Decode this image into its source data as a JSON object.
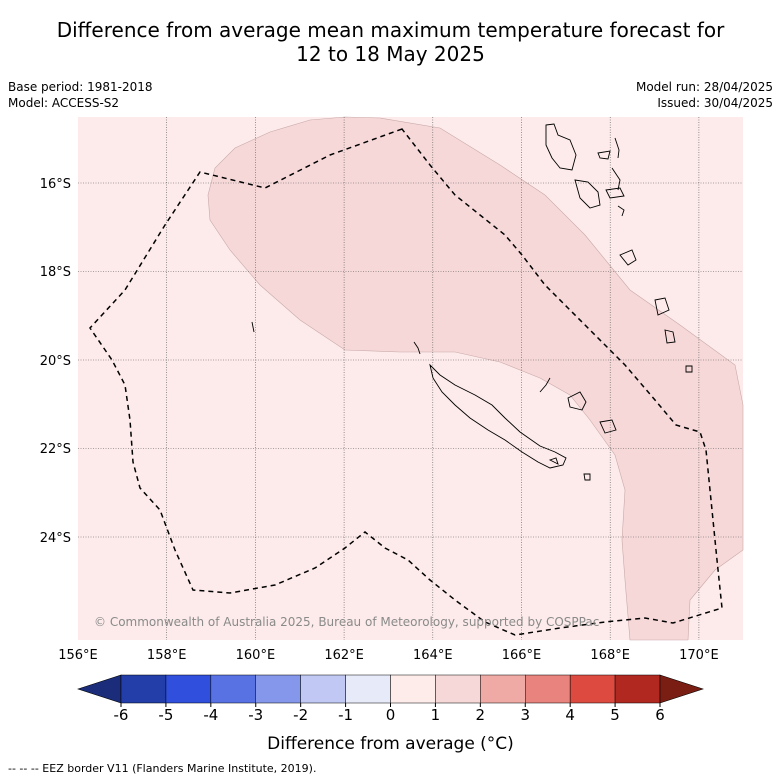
{
  "title_line1": "Difference from average mean maximum temperature forecast for",
  "title_line2": "12 to 18 May 2025",
  "base_period": "Base period: 1981-2018",
  "model": "Model: ACCESS-S2",
  "model_run": "Model run: 28/04/2025",
  "issued": "Issued: 30/04/2025",
  "copyright": "© Commonwealth of Australia 2025, Bureau of Meteorology, supported by COSPPac",
  "lat_labels": [
    "16°S",
    "18°S",
    "20°S",
    "22°S",
    "24°S"
  ],
  "lon_labels": [
    "156°E",
    "158°E",
    "160°E",
    "162°E",
    "164°E",
    "166°E",
    "168°E",
    "170°E"
  ],
  "colorbar": {
    "ticks": [
      "-6",
      "-5",
      "-4",
      "-3",
      "-2",
      "-1",
      "0",
      "1",
      "2",
      "3",
      "4",
      "5",
      "6"
    ],
    "colors": [
      "#233da9",
      "#2f4fdc",
      "#5872e4",
      "#8597ea",
      "#c0c8f3",
      "#e7ebf9",
      "#fdecea",
      "#f6d8d8",
      "#efaaa6",
      "#e8837e",
      "#dc4a40",
      "#b02820"
    ],
    "under_color": "#1a2c7a",
    "over_color": "#7a1e14",
    "label": "Difference from average (°C)"
  },
  "map_colors": {
    "background_0_1": "#fcebea",
    "zone_1_2": "#f6d8d8",
    "contour_line": "#c9a9a9",
    "eez_line": "#000000"
  },
  "footer": "-- -- -- EEZ border V11 (Flanders Marine Institute, 2019)."
}
